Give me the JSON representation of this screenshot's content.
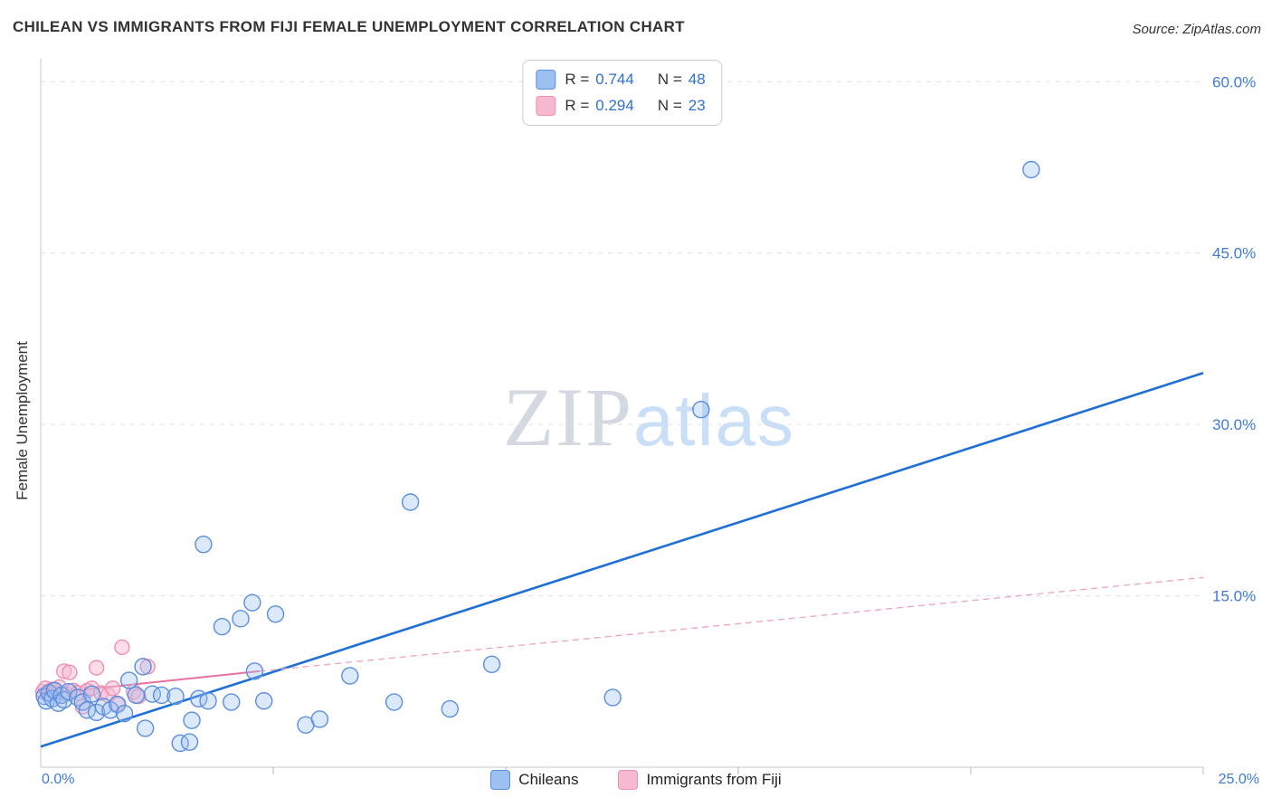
{
  "header": {
    "title": "CHILEAN VS IMMIGRANTS FROM FIJI FEMALE UNEMPLOYMENT CORRELATION CHART",
    "source": "Source: ZipAtlas.com"
  },
  "legend": {
    "rows": [
      {
        "series": "Chileans",
        "r_label": "R =",
        "r_value": "0.744",
        "n_label": "N =",
        "n_value": "48"
      },
      {
        "series": "Immigrants from Fiji",
        "r_label": "R =",
        "r_value": "0.294",
        "n_label": "N =",
        "n_value": "23"
      }
    ]
  },
  "watermark": {
    "zip": "ZIP",
    "atlas": "atlas"
  },
  "axes": {
    "y_label": "Female Unemployment",
    "y_ticks": [
      {
        "value": 60,
        "label": "60.0%"
      },
      {
        "value": 45,
        "label": "45.0%"
      },
      {
        "value": 30,
        "label": "30.0%"
      },
      {
        "value": 15,
        "label": "15.0%"
      }
    ],
    "x_minor_ticks": [
      5,
      10,
      15,
      20,
      25
    ],
    "x_min_label": "0.0%",
    "x_max_label": "25.0%"
  },
  "bottom_legend": {
    "items": [
      {
        "label": "Chileans"
      },
      {
        "label": "Immigrants from Fiji"
      }
    ]
  },
  "colors": {
    "chilean_fill": "#9cc0f0",
    "chilean_stroke": "#5b8ee0",
    "fiji_fill": "#f7b9d0",
    "fiji_stroke": "#ef8fb4",
    "trend_blue": "#1f6fd6",
    "trend_pink": "#e8709f",
    "trend_pink_dashed": "#f0a2bf",
    "axis_label_blue": "#3e7bd6",
    "gridline": "#e0e0e0",
    "axis_line": "#c9c9c9",
    "watermark_zip": "#c6ccd8",
    "watermark_atlas": "#bcd6f6"
  },
  "chart_data": {
    "type": "scatter",
    "title": "CHILEAN VS IMMIGRANTS FROM FIJI FEMALE UNEMPLOYMENT CORRELATION CHART",
    "xlabel": "",
    "ylabel": "Female Unemployment",
    "xlim": [
      0,
      25
    ],
    "ylim": [
      0,
      62
    ],
    "x_tick_labels_shown": [
      "0.0%",
      "25.0%"
    ],
    "y_tick_labels_shown": [
      "15.0%",
      "30.0%",
      "45.0%",
      "60.0%"
    ],
    "grid": "horizontal-dashed",
    "legend_position": "bottom-center",
    "series": [
      {
        "name": "Chileans",
        "R": 0.744,
        "N": 48,
        "points": [
          [
            0.08,
            6.2
          ],
          [
            0.12,
            5.8
          ],
          [
            0.18,
            6.5
          ],
          [
            0.25,
            6.0
          ],
          [
            0.3,
            6.7
          ],
          [
            0.38,
            5.6
          ],
          [
            0.45,
            6.3
          ],
          [
            0.5,
            5.9
          ],
          [
            0.6,
            6.6
          ],
          [
            0.8,
            6.1
          ],
          [
            0.9,
            5.7
          ],
          [
            1.0,
            5.0
          ],
          [
            1.1,
            6.4
          ],
          [
            1.2,
            4.8
          ],
          [
            1.35,
            5.3
          ],
          [
            1.5,
            5.0
          ],
          [
            1.65,
            5.5
          ],
          [
            1.8,
            4.7
          ],
          [
            1.9,
            7.6
          ],
          [
            2.05,
            6.3
          ],
          [
            2.2,
            8.8
          ],
          [
            2.25,
            3.4
          ],
          [
            2.4,
            6.4
          ],
          [
            2.6,
            6.3
          ],
          [
            2.9,
            6.2
          ],
          [
            3.0,
            2.1
          ],
          [
            3.2,
            2.2
          ],
          [
            3.25,
            4.1
          ],
          [
            3.4,
            6.0
          ],
          [
            3.5,
            19.5
          ],
          [
            3.6,
            5.8
          ],
          [
            3.9,
            12.3
          ],
          [
            4.1,
            5.7
          ],
          [
            4.3,
            13.0
          ],
          [
            4.55,
            14.4
          ],
          [
            4.6,
            8.4
          ],
          [
            4.8,
            5.8
          ],
          [
            5.05,
            13.4
          ],
          [
            5.7,
            3.7
          ],
          [
            6.0,
            4.2
          ],
          [
            6.65,
            8.0
          ],
          [
            7.6,
            5.7
          ],
          [
            7.95,
            23.2
          ],
          [
            8.8,
            5.1
          ],
          [
            9.7,
            9.0
          ],
          [
            12.3,
            6.1
          ],
          [
            14.2,
            31.3
          ],
          [
            21.3,
            52.3
          ]
        ]
      },
      {
        "name": "Immigrants from Fiji",
        "R": 0.294,
        "N": 23,
        "points": [
          [
            0.05,
            6.6
          ],
          [
            0.1,
            6.9
          ],
          [
            0.18,
            6.4
          ],
          [
            0.25,
            6.8
          ],
          [
            0.32,
            6.5
          ],
          [
            0.4,
            7.0
          ],
          [
            0.5,
            8.4
          ],
          [
            0.55,
            6.4
          ],
          [
            0.62,
            8.3
          ],
          [
            0.7,
            6.7
          ],
          [
            0.8,
            6.5
          ],
          [
            0.9,
            5.3
          ],
          [
            1.0,
            6.7
          ],
          [
            1.1,
            6.9
          ],
          [
            1.2,
            8.7
          ],
          [
            1.3,
            6.5
          ],
          [
            1.45,
            6.3
          ],
          [
            1.55,
            6.9
          ],
          [
            1.65,
            5.5
          ],
          [
            1.75,
            10.5
          ],
          [
            2.0,
            6.6
          ],
          [
            2.1,
            6.2
          ],
          [
            2.3,
            8.8
          ]
        ]
      }
    ],
    "trend_lines": [
      {
        "series": "Chileans",
        "style": "solid",
        "x1": 0,
        "y1": 1.8,
        "x2": 25,
        "y2": 34.5
      },
      {
        "series": "Immigrants from Fiji",
        "style": "solid",
        "x1": 0,
        "y1": 6.4,
        "x2": 4.7,
        "y2": 8.4
      },
      {
        "series": "Immigrants from Fiji",
        "style": "dashed",
        "x1": 4.7,
        "y1": 8.4,
        "x2": 25,
        "y2": 16.6
      }
    ]
  }
}
